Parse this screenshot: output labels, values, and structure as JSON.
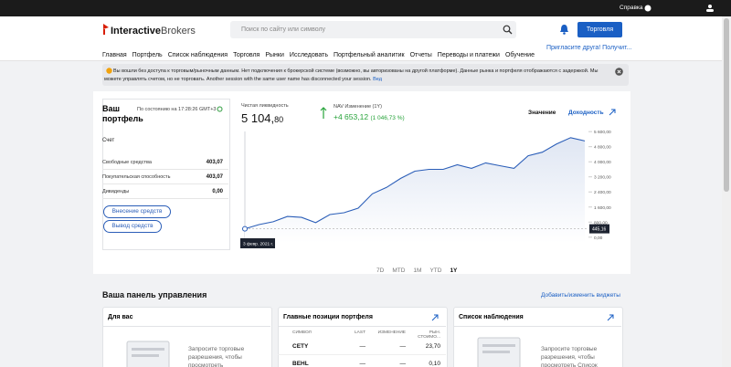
{
  "top_bar": {
    "help": "Справка"
  },
  "header": {
    "logo_bold": "Interactive",
    "logo_light": "Brokers",
    "search_placeholder": "Поиск по сайту или символу",
    "trade_button": "Торговля"
  },
  "nav": {
    "items": [
      "Главная",
      "Портфель",
      "Список наблюдения",
      "Торговля",
      "Рынки",
      "Исследовать",
      "Портфельный аналитик",
      "Отчеты",
      "Переводы и платежи",
      "Обучение"
    ],
    "invite": "Пригласите друга! Получит..."
  },
  "notice": {
    "text": "Вы вошли без доступа к торговым/рыночным данным. Нет подключения к брокерской системе (возможно, вы авторизованы на другой платформе). Данные рынка и портфеля отображаются с задержкой. Мы можете управлять счетом, но не торговать. Another session with the same user name has disconnected your session.",
    "link": "Вед"
  },
  "portfolio": {
    "title": "Ваш портфель",
    "as_of": "По состоянию на 17:28:26 GMT+3",
    "account_label": "Счет",
    "rows": [
      [
        "Свободные средства",
        "403,07"
      ],
      [
        "Покупательская способность",
        "403,07"
      ],
      [
        "Дивиденды",
        "0,00"
      ]
    ],
    "deposit": "Внесение средств",
    "withdraw": "Вывод средств"
  },
  "summary": {
    "net_liquidity_label": "Чистая ликвидность",
    "net_liquidity_main": "5 104,",
    "net_liquidity_decimals": "80",
    "nav_change_label": "NAV Изменение (1Y)",
    "nav_change": "+4 653,12",
    "nav_change_pct": "(1 046,73 %)",
    "tab_value": "Значение",
    "tab_return": "Доходность"
  },
  "portfolio_chart": {
    "type": "line",
    "color": "#2b5eb8",
    "values": [
      445.16,
      670,
      820,
      1100,
      1050,
      770,
      1200,
      1300,
      1540,
      2300,
      2640,
      3120,
      3500,
      3600,
      3600,
      3840,
      3650,
      3940,
      3790,
      3650,
      4320,
      4510,
      4940,
      5280,
      5104.8
    ],
    "ylim": [
      -300,
      5850
    ],
    "yticks": [
      {
        "value": 0,
        "label": "0,00"
      },
      {
        "value": 800,
        "label": "800,00"
      },
      {
        "value": 1600,
        "label": "1 600,00"
      },
      {
        "value": 2400,
        "label": "2 400,00"
      },
      {
        "value": 3200,
        "label": "3 200,00"
      },
      {
        "value": 4000,
        "label": "4 000,00"
      },
      {
        "value": 4800,
        "label": "4 800,00"
      },
      {
        "value": 5600,
        "label": "5 600,00"
      }
    ],
    "hover": {
      "date": "3 февр. 2021 г.",
      "value": {
        "value": 445.16,
        "label": "445,16"
      }
    },
    "ranges": [
      "7D",
      "MTD",
      "1M",
      "YTD",
      "1Y"
    ]
  },
  "dashboard": {
    "title": "Ваша панель управления",
    "edit": "Добавить/изменить виджеты",
    "for_you": {
      "title": "Для вас",
      "text": "Запросите торговые разрешения, чтобы просмотреть"
    },
    "positions": {
      "title": "Главные позиции портфеля",
      "headers": [
        "СИМВОЛ",
        "LAST",
        "ИЗМЕНЕНИЕ",
        "РЫН. СТОИМО..."
      ],
      "rows": [
        [
          "CETY",
          "—",
          "—",
          "23,70"
        ],
        [
          "BEHL",
          "—",
          "—",
          "0,10"
        ]
      ]
    },
    "watchlist": {
      "title": "Список наблюдения",
      "text": "Запросите торговые разрешения, чтобы просмотреть Список"
    }
  }
}
